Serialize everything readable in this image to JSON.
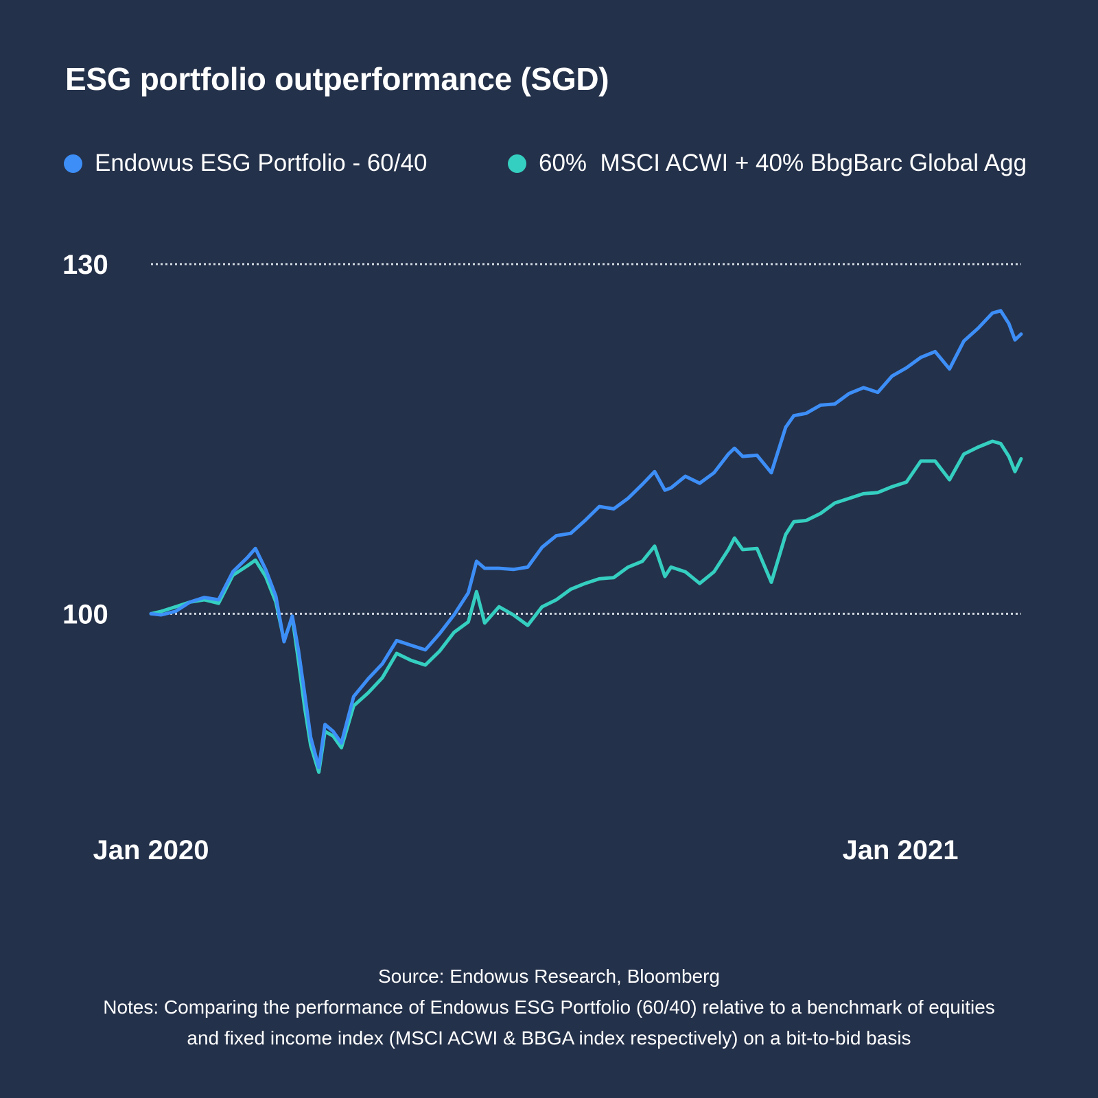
{
  "title": "ESG portfolio outperformance (SGD)",
  "colors": {
    "background": "#24314a",
    "series_esg": "#3d8ef7",
    "series_benchmark": "#35cfc1",
    "gridline": "#cfd6df",
    "text": "#ffffff"
  },
  "chart_data": {
    "type": "line",
    "title": "ESG portfolio outperformance (SGD)",
    "x_axis": {
      "type": "date",
      "range": [
        "2020-01-01",
        "2021-03-01"
      ],
      "tick_labels": [
        {
          "date": "2020-01-01",
          "label": "Jan 2020"
        },
        {
          "date": "2021-01-01",
          "label": "Jan 2021"
        }
      ]
    },
    "y_axis": {
      "range": [
        82,
        135
      ],
      "tick_labels": [
        {
          "value": 100,
          "label": "100"
        },
        {
          "value": 130,
          "label": "130"
        }
      ],
      "grid": "dotted",
      "gridlines": [
        100,
        130
      ]
    },
    "legend": {
      "placement": "top-left",
      "orientation": "horizontal"
    },
    "series": [
      {
        "name": "Endowus ESG Portfolio - 60/40",
        "color": "#3d8ef7",
        "points": [
          [
            "2020-01-01",
            100.0
          ],
          [
            "2020-01-06",
            99.9
          ],
          [
            "2020-01-13",
            100.2
          ],
          [
            "2020-01-20",
            101.0
          ],
          [
            "2020-01-27",
            101.4
          ],
          [
            "2020-02-03",
            101.2
          ],
          [
            "2020-02-10",
            103.6
          ],
          [
            "2020-02-17",
            104.8
          ],
          [
            "2020-02-21",
            105.6
          ],
          [
            "2020-02-26",
            103.8
          ],
          [
            "2020-03-02",
            101.5
          ],
          [
            "2020-03-06",
            97.6
          ],
          [
            "2020-03-10",
            99.8
          ],
          [
            "2020-03-13",
            96.9
          ],
          [
            "2020-03-16",
            93.2
          ],
          [
            "2020-03-19",
            89.4
          ],
          [
            "2020-03-23",
            86.8
          ],
          [
            "2020-03-26",
            90.5
          ],
          [
            "2020-03-30",
            89.9
          ],
          [
            "2020-04-03",
            88.9
          ],
          [
            "2020-04-09",
            92.9
          ],
          [
            "2020-04-16",
            94.4
          ],
          [
            "2020-04-23",
            95.7
          ],
          [
            "2020-04-30",
            97.7
          ],
          [
            "2020-05-07",
            97.3
          ],
          [
            "2020-05-14",
            96.9
          ],
          [
            "2020-05-21",
            98.3
          ],
          [
            "2020-05-28",
            99.9
          ],
          [
            "2020-06-04",
            101.8
          ],
          [
            "2020-06-08",
            104.5
          ],
          [
            "2020-06-12",
            103.9
          ],
          [
            "2020-06-19",
            103.9
          ],
          [
            "2020-06-26",
            103.8
          ],
          [
            "2020-07-03",
            104.0
          ],
          [
            "2020-07-10",
            105.7
          ],
          [
            "2020-07-17",
            106.7
          ],
          [
            "2020-07-24",
            106.9
          ],
          [
            "2020-07-31",
            108.0
          ],
          [
            "2020-08-07",
            109.2
          ],
          [
            "2020-08-14",
            109.0
          ],
          [
            "2020-08-21",
            109.9
          ],
          [
            "2020-08-28",
            111.1
          ],
          [
            "2020-09-03",
            112.2
          ],
          [
            "2020-09-08",
            110.6
          ],
          [
            "2020-09-11",
            110.8
          ],
          [
            "2020-09-18",
            111.8
          ],
          [
            "2020-09-25",
            111.2
          ],
          [
            "2020-10-02",
            112.1
          ],
          [
            "2020-10-09",
            113.7
          ],
          [
            "2020-10-12",
            114.2
          ],
          [
            "2020-10-16",
            113.5
          ],
          [
            "2020-10-23",
            113.6
          ],
          [
            "2020-10-30",
            112.1
          ],
          [
            "2020-11-06",
            116.0
          ],
          [
            "2020-11-10",
            117.0
          ],
          [
            "2020-11-16",
            117.2
          ],
          [
            "2020-11-23",
            117.9
          ],
          [
            "2020-11-30",
            118.0
          ],
          [
            "2020-12-07",
            118.9
          ],
          [
            "2020-12-14",
            119.4
          ],
          [
            "2020-12-21",
            119.0
          ],
          [
            "2020-12-28",
            120.4
          ],
          [
            "2021-01-04",
            121.1
          ],
          [
            "2021-01-11",
            122.0
          ],
          [
            "2021-01-18",
            122.5
          ],
          [
            "2021-01-25",
            121.0
          ],
          [
            "2021-02-01",
            123.4
          ],
          [
            "2021-02-08",
            124.5
          ],
          [
            "2021-02-15",
            125.8
          ],
          [
            "2021-02-19",
            126.0
          ],
          [
            "2021-02-23",
            124.9
          ],
          [
            "2021-02-26",
            123.5
          ],
          [
            "2021-03-01",
            124.0
          ]
        ]
      },
      {
        "name": "60%  MSCI ACWI + 40% BbgBarc Global Agg",
        "color": "#35cfc1",
        "points": [
          [
            "2020-01-01",
            100.0
          ],
          [
            "2020-01-06",
            100.2
          ],
          [
            "2020-01-13",
            100.6
          ],
          [
            "2020-01-20",
            101.0
          ],
          [
            "2020-01-27",
            101.2
          ],
          [
            "2020-02-03",
            100.9
          ],
          [
            "2020-02-10",
            103.3
          ],
          [
            "2020-02-17",
            104.1
          ],
          [
            "2020-02-21",
            104.6
          ],
          [
            "2020-02-26",
            103.2
          ],
          [
            "2020-03-02",
            101.0
          ],
          [
            "2020-03-06",
            97.7
          ],
          [
            "2020-03-10",
            99.7
          ],
          [
            "2020-03-13",
            96.0
          ],
          [
            "2020-03-16",
            92.0
          ],
          [
            "2020-03-19",
            88.7
          ],
          [
            "2020-03-23",
            86.4
          ],
          [
            "2020-03-26",
            89.9
          ],
          [
            "2020-03-30",
            89.5
          ],
          [
            "2020-04-03",
            88.5
          ],
          [
            "2020-04-09",
            92.1
          ],
          [
            "2020-04-16",
            93.2
          ],
          [
            "2020-04-23",
            94.5
          ],
          [
            "2020-04-30",
            96.6
          ],
          [
            "2020-05-07",
            96.0
          ],
          [
            "2020-05-14",
            95.6
          ],
          [
            "2020-05-21",
            96.8
          ],
          [
            "2020-05-28",
            98.4
          ],
          [
            "2020-06-04",
            99.3
          ],
          [
            "2020-06-08",
            101.9
          ],
          [
            "2020-06-12",
            99.2
          ],
          [
            "2020-06-19",
            100.6
          ],
          [
            "2020-06-26",
            99.9
          ],
          [
            "2020-07-03",
            99.0
          ],
          [
            "2020-07-10",
            100.6
          ],
          [
            "2020-07-17",
            101.2
          ],
          [
            "2020-07-24",
            102.1
          ],
          [
            "2020-07-31",
            102.6
          ],
          [
            "2020-08-07",
            103.0
          ],
          [
            "2020-08-14",
            103.1
          ],
          [
            "2020-08-21",
            104.0
          ],
          [
            "2020-08-28",
            104.5
          ],
          [
            "2020-09-03",
            105.8
          ],
          [
            "2020-09-08",
            103.2
          ],
          [
            "2020-09-11",
            104.0
          ],
          [
            "2020-09-18",
            103.6
          ],
          [
            "2020-09-25",
            102.6
          ],
          [
            "2020-10-02",
            103.6
          ],
          [
            "2020-10-09",
            105.5
          ],
          [
            "2020-10-12",
            106.5
          ],
          [
            "2020-10-16",
            105.5
          ],
          [
            "2020-10-23",
            105.6
          ],
          [
            "2020-10-30",
            102.7
          ],
          [
            "2020-11-06",
            106.8
          ],
          [
            "2020-11-10",
            107.9
          ],
          [
            "2020-11-16",
            108.0
          ],
          [
            "2020-11-23",
            108.6
          ],
          [
            "2020-11-30",
            109.5
          ],
          [
            "2020-12-07",
            109.9
          ],
          [
            "2020-12-14",
            110.3
          ],
          [
            "2020-12-21",
            110.4
          ],
          [
            "2020-12-28",
            110.9
          ],
          [
            "2021-01-04",
            111.3
          ],
          [
            "2021-01-11",
            113.1
          ],
          [
            "2021-01-18",
            113.1
          ],
          [
            "2021-01-25",
            111.5
          ],
          [
            "2021-02-01",
            113.7
          ],
          [
            "2021-02-08",
            114.3
          ],
          [
            "2021-02-15",
            114.8
          ],
          [
            "2021-02-19",
            114.6
          ],
          [
            "2021-02-23",
            113.5
          ],
          [
            "2021-02-26",
            112.2
          ],
          [
            "2021-03-01",
            113.3
          ]
        ]
      }
    ]
  },
  "footer": {
    "source": "Source: Endowus Research, Bloomberg",
    "notes_line1": "Notes: Comparing the performance of Endowus ESG Portfolio (60/40) relative to a benchmark of equities",
    "notes_line2": "and fixed income index (MSCI ACWI & BBGA index respectively) on a bit-to-bid basis"
  }
}
